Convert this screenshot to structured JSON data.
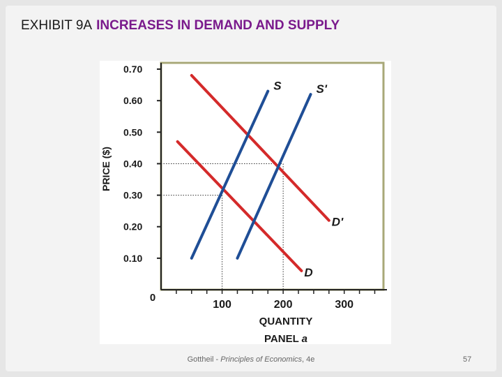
{
  "slide": {
    "title_main": "EXHIBIT 9A",
    "title_sub": "INCREASES IN DEMAND AND SUPPLY",
    "footer_author": "Gottheil - ",
    "footer_book": "Principles of Economics",
    "footer_edition": ", 4e",
    "page_number": "57"
  },
  "chart_data": {
    "type": "line",
    "ylabel": "PRICE ($)",
    "xlabel": "QUANTITY",
    "caption_prefix": "PANEL ",
    "caption_letter": "a",
    "x_ticks": [
      {
        "value": 100,
        "label": "100"
      },
      {
        "value": 200,
        "label": "200"
      },
      {
        "value": 300,
        "label": "300"
      }
    ],
    "y_ticks": [
      {
        "value": 0.1,
        "label": "0.10"
      },
      {
        "value": 0.2,
        "label": "0.20"
      },
      {
        "value": 0.3,
        "label": "0.30"
      },
      {
        "value": 0.4,
        "label": "0.40"
      },
      {
        "value": 0.5,
        "label": "0.50"
      },
      {
        "value": 0.6,
        "label": "0.60"
      },
      {
        "value": 0.7,
        "label": "0.70"
      }
    ],
    "origin_label": "0",
    "xlim": [
      0,
      370
    ],
    "ylim": [
      0,
      0.72
    ],
    "series": [
      {
        "name": "D",
        "color": "#d42a2a",
        "points": [
          [
            27,
            0.47
          ],
          [
            230,
            0.06
          ]
        ]
      },
      {
        "name": "D'",
        "color": "#d42a2a",
        "points": [
          [
            50,
            0.68
          ],
          [
            275,
            0.22
          ]
        ]
      },
      {
        "name": "S",
        "color": "#1f4e96",
        "points": [
          [
            50,
            0.1
          ],
          [
            175,
            0.63
          ]
        ]
      },
      {
        "name": "S'",
        "color": "#1f4e96",
        "points": [
          [
            125,
            0.1
          ],
          [
            245,
            0.62
          ]
        ]
      }
    ],
    "guides": [
      {
        "x": 100,
        "y": 0.3
      },
      {
        "x": 200,
        "y": 0.4
      }
    ],
    "frame_color": "#a8a878"
  }
}
